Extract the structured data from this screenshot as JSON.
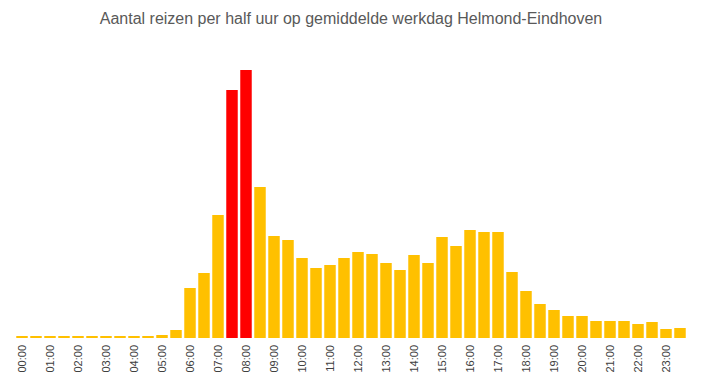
{
  "chart_data": {
    "type": "bar",
    "title": "Aantal reizen per half uur op gemiddelde werkdag Helmond-Eindhoven",
    "categories": [
      "00:00",
      null,
      "01:00",
      null,
      "02:00",
      null,
      "03:00",
      null,
      "04:00",
      null,
      "05:00",
      null,
      "06:00",
      null,
      "07:00",
      null,
      "08:00",
      null,
      "09:00",
      null,
      "10:00",
      null,
      "11:00",
      null,
      "12:00",
      null,
      "13:00",
      null,
      "14:00",
      null,
      "15:00",
      null,
      "16:00",
      null,
      "17:00",
      null,
      "18:00",
      null,
      "19:00",
      null,
      "20:00",
      null,
      "21:00",
      null,
      "22:00",
      null,
      "23:00",
      null
    ],
    "values": [
      2,
      2,
      2,
      2,
      2,
      2,
      2,
      2,
      2,
      2,
      3,
      8,
      50,
      65,
      123,
      248,
      268,
      151,
      102,
      98,
      80,
      70,
      73,
      80,
      86,
      84,
      75,
      68,
      83,
      75,
      101,
      92,
      108,
      106,
      106,
      66,
      47,
      34,
      28,
      22,
      22,
      17,
      17,
      17,
      14,
      16,
      9,
      10
    ],
    "colors": [
      "#FFC000",
      "#FFC000",
      "#FFC000",
      "#FFC000",
      "#FFC000",
      "#FFC000",
      "#FFC000",
      "#FFC000",
      "#FFC000",
      "#FFC000",
      "#FFC000",
      "#FFC000",
      "#FFC000",
      "#FFC000",
      "#FFC000",
      "#FF0000",
      "#FF0000",
      "#FFC000",
      "#FFC000",
      "#FFC000",
      "#FFC000",
      "#FFC000",
      "#FFC000",
      "#FFC000",
      "#FFC000",
      "#FFC000",
      "#FFC000",
      "#FFC000",
      "#FFC000",
      "#FFC000",
      "#FFC000",
      "#FFC000",
      "#FFC000",
      "#FFC000",
      "#FFC000",
      "#FFC000",
      "#FFC000",
      "#FFC000",
      "#FFC000",
      "#FFC000",
      "#FFC000",
      "#FFC000",
      "#FFC000",
      "#FFC000",
      "#FFC000",
      "#FFC000",
      "#FFC000",
      "#FFC000"
    ],
    "ylim": [
      0,
      280
    ],
    "tick_labels": "x"
  }
}
